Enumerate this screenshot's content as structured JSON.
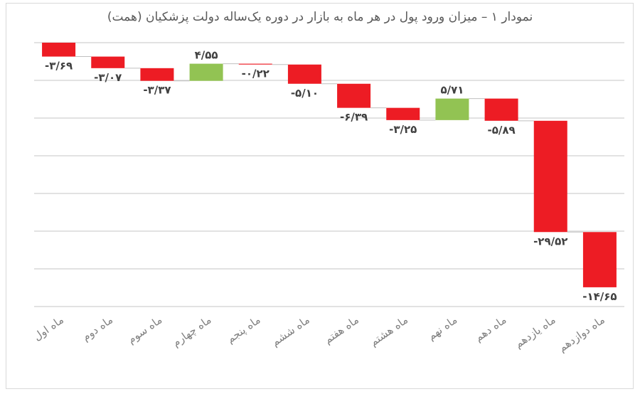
{
  "chart_data": {
    "type": "waterfall",
    "title": "نمودار ۱ – میزان ورود پول در هر ماه به بازار در دوره یک‌ساله دولت پزشکیان (همت)",
    "categories": [
      "ماه اول",
      "ماه دوم",
      "ماه سوم",
      "ماه چهارم",
      "ماه پنجم",
      "ماه ششم",
      "ماه هفتم",
      "ماه هشتم",
      "ماه نهم",
      "ماه دهم",
      "ماه یازدهم",
      "ماه دوازدهم"
    ],
    "values": [
      -3.69,
      -3.07,
      -3.37,
      4.55,
      -0.22,
      -5.1,
      -6.39,
      -3.25,
      5.71,
      -5.89,
      -29.52,
      -14.65
    ],
    "data_labels": [
      "-۳/۶۹",
      "-۳/۰۷",
      "-۳/۳۷",
      "۴/۵۵",
      "-۰/۲۲",
      "-۵/۱۰",
      "-۶/۳۹",
      "-۳/۲۵",
      "۵/۷۱",
      "-۵/۸۹",
      "-۲۹/۵۲",
      "-۱۴/۶۵"
    ],
    "ylim": [
      -70,
      0
    ],
    "grid": true,
    "y_tick_labels_shown": false,
    "colors": {
      "increase": "#92c353",
      "decrease": "#ed1c24",
      "grid": "#d9d9d9",
      "connector": "#bfbfbf",
      "label": "#404040",
      "category": "#7f7f7f"
    }
  }
}
